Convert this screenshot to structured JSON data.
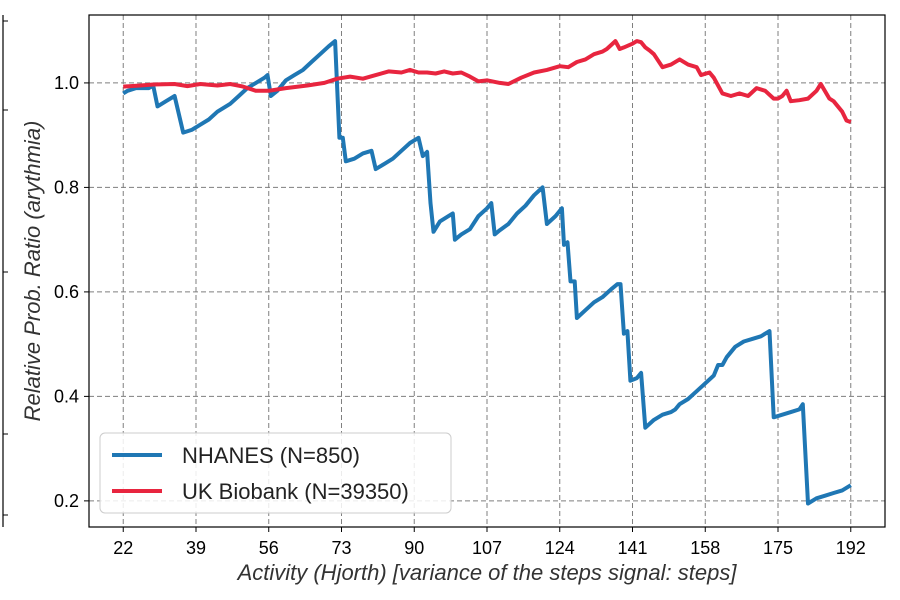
{
  "chart_data": {
    "type": "line",
    "xlabel": "Activity (Hjorth) [variance of the steps signal: steps]",
    "ylabel": "Relative Prob. Ratio (arythmia)",
    "xlim": [
      14,
      200
    ],
    "ylim": [
      0.15,
      1.13
    ],
    "xticks": [
      22,
      39,
      56,
      73,
      90,
      107,
      124,
      141,
      158,
      175,
      192
    ],
    "yticks": [
      0.2,
      0.4,
      0.6,
      0.8,
      1.0
    ],
    "ytick_labels": [
      "0.2",
      "0.4",
      "0.6",
      "0.8",
      "1.0"
    ],
    "grid": true,
    "legend_position": "lower-left",
    "series": [
      {
        "name": "NHANES (N=850)",
        "color": "#1f77b4",
        "points": [
          [
            22,
            0.98
          ],
          [
            23,
            0.985
          ],
          [
            25,
            0.99
          ],
          [
            28,
            0.99
          ],
          [
            29,
            0.995
          ],
          [
            30,
            0.955
          ],
          [
            32,
            0.965
          ],
          [
            34,
            0.975
          ],
          [
            36,
            0.905
          ],
          [
            38,
            0.91
          ],
          [
            40,
            0.92
          ],
          [
            42,
            0.93
          ],
          [
            44,
            0.945
          ],
          [
            47,
            0.96
          ],
          [
            49,
            0.975
          ],
          [
            51,
            0.99
          ],
          [
            53,
            1.0
          ],
          [
            55,
            1.01
          ],
          [
            55.7,
            1.015
          ],
          [
            56.5,
            0.975
          ],
          [
            58,
            0.985
          ],
          [
            60,
            1.005
          ],
          [
            62,
            1.015
          ],
          [
            64,
            1.025
          ],
          [
            66,
            1.04
          ],
          [
            68,
            1.055
          ],
          [
            70,
            1.07
          ],
          [
            71.5,
            1.08
          ],
          [
            72.5,
            0.895
          ],
          [
            73.3,
            0.895
          ],
          [
            74,
            0.85
          ],
          [
            76,
            0.855
          ],
          [
            78,
            0.865
          ],
          [
            80,
            0.87
          ],
          [
            81,
            0.835
          ],
          [
            83,
            0.845
          ],
          [
            85,
            0.855
          ],
          [
            87,
            0.87
          ],
          [
            89,
            0.885
          ],
          [
            91,
            0.895
          ],
          [
            92,
            0.86
          ],
          [
            93,
            0.868
          ],
          [
            93.8,
            0.77
          ],
          [
            94.5,
            0.715
          ],
          [
            96,
            0.735
          ],
          [
            98,
            0.745
          ],
          [
            99,
            0.75
          ],
          [
            99.5,
            0.7
          ],
          [
            101,
            0.71
          ],
          [
            103,
            0.72
          ],
          [
            105,
            0.745
          ],
          [
            107,
            0.76
          ],
          [
            108,
            0.77
          ],
          [
            108.8,
            0.71
          ],
          [
            110,
            0.718
          ],
          [
            112,
            0.73
          ],
          [
            114,
            0.75
          ],
          [
            116,
            0.765
          ],
          [
            118,
            0.785
          ],
          [
            120,
            0.8
          ],
          [
            121,
            0.73
          ],
          [
            123,
            0.745
          ],
          [
            124.5,
            0.76
          ],
          [
            125,
            0.69
          ],
          [
            125.8,
            0.695
          ],
          [
            126.5,
            0.62
          ],
          [
            127.5,
            0.62
          ],
          [
            128,
            0.55
          ],
          [
            130,
            0.565
          ],
          [
            132,
            0.58
          ],
          [
            134,
            0.59
          ],
          [
            136,
            0.605
          ],
          [
            137.5,
            0.615
          ],
          [
            138.2,
            0.615
          ],
          [
            139,
            0.52
          ],
          [
            139.8,
            0.525
          ],
          [
            140.5,
            0.43
          ],
          [
            142,
            0.435
          ],
          [
            143,
            0.445
          ],
          [
            144,
            0.34
          ],
          [
            146,
            0.355
          ],
          [
            148,
            0.365
          ],
          [
            150,
            0.37
          ],
          [
            151,
            0.375
          ],
          [
            152,
            0.385
          ],
          [
            154,
            0.395
          ],
          [
            156,
            0.41
          ],
          [
            158,
            0.425
          ],
          [
            160,
            0.44
          ],
          [
            161,
            0.46
          ],
          [
            162,
            0.46
          ],
          [
            163,
            0.475
          ],
          [
            165,
            0.495
          ],
          [
            167,
            0.505
          ],
          [
            169,
            0.51
          ],
          [
            171,
            0.515
          ],
          [
            173,
            0.525
          ],
          [
            174,
            0.36
          ],
          [
            176,
            0.365
          ],
          [
            178,
            0.37
          ],
          [
            180,
            0.375
          ],
          [
            180.8,
            0.385
          ],
          [
            182,
            0.195
          ],
          [
            184,
            0.205
          ],
          [
            186,
            0.21
          ],
          [
            188,
            0.215
          ],
          [
            190,
            0.22
          ],
          [
            192,
            0.23
          ]
        ]
      },
      {
        "name": "UK Biobank (N=39350)",
        "color": "#e8253f",
        "points": [
          [
            22,
            0.993
          ],
          [
            26,
            0.995
          ],
          [
            29,
            0.997
          ],
          [
            34,
            0.998
          ],
          [
            37,
            0.994
          ],
          [
            40,
            0.998
          ],
          [
            44,
            0.995
          ],
          [
            47,
            0.998
          ],
          [
            50,
            0.993
          ],
          [
            53,
            0.985
          ],
          [
            56,
            0.985
          ],
          [
            60,
            0.99
          ],
          [
            65,
            0.995
          ],
          [
            69,
            1.0
          ],
          [
            72,
            1.008
          ],
          [
            75,
            1.012
          ],
          [
            78,
            1.008
          ],
          [
            81,
            1.015
          ],
          [
            84,
            1.022
          ],
          [
            87,
            1.02
          ],
          [
            89,
            1.025
          ],
          [
            91,
            1.02
          ],
          [
            93,
            1.02
          ],
          [
            95,
            1.018
          ],
          [
            97,
            1.022
          ],
          [
            99,
            1.018
          ],
          [
            101,
            1.02
          ],
          [
            103,
            1.012
          ],
          [
            105,
            1.003
          ],
          [
            107,
            1.005
          ],
          [
            110,
            1.0
          ],
          [
            112,
            0.998
          ],
          [
            115,
            1.01
          ],
          [
            118,
            1.02
          ],
          [
            121,
            1.025
          ],
          [
            124,
            1.032
          ],
          [
            126,
            1.03
          ],
          [
            128,
            1.04
          ],
          [
            130,
            1.045
          ],
          [
            132,
            1.055
          ],
          [
            134,
            1.06
          ],
          [
            135,
            1.065
          ],
          [
            137,
            1.08
          ],
          [
            138,
            1.065
          ],
          [
            139,
            1.068
          ],
          [
            141,
            1.075
          ],
          [
            142,
            1.08
          ],
          [
            143,
            1.078
          ],
          [
            144,
            1.068
          ],
          [
            145,
            1.062
          ],
          [
            146,
            1.055
          ],
          [
            148,
            1.03
          ],
          [
            150,
            1.035
          ],
          [
            152,
            1.045
          ],
          [
            154,
            1.035
          ],
          [
            156,
            1.03
          ],
          [
            157,
            1.015
          ],
          [
            159,
            1.02
          ],
          [
            160,
            1.01
          ],
          [
            162,
            0.98
          ],
          [
            164,
            0.975
          ],
          [
            166,
            0.98
          ],
          [
            168,
            0.975
          ],
          [
            170,
            0.99
          ],
          [
            172,
            0.985
          ],
          [
            174,
            0.97
          ],
          [
            175,
            0.97
          ],
          [
            176,
            0.975
          ],
          [
            177,
            0.985
          ],
          [
            178,
            0.965
          ],
          [
            180,
            0.967
          ],
          [
            182,
            0.97
          ],
          [
            184,
            0.985
          ],
          [
            185,
            0.998
          ],
          [
            187,
            0.97
          ],
          [
            188,
            0.965
          ],
          [
            190,
            0.945
          ],
          [
            191,
            0.928
          ],
          [
            192,
            0.925
          ]
        ]
      }
    ]
  }
}
